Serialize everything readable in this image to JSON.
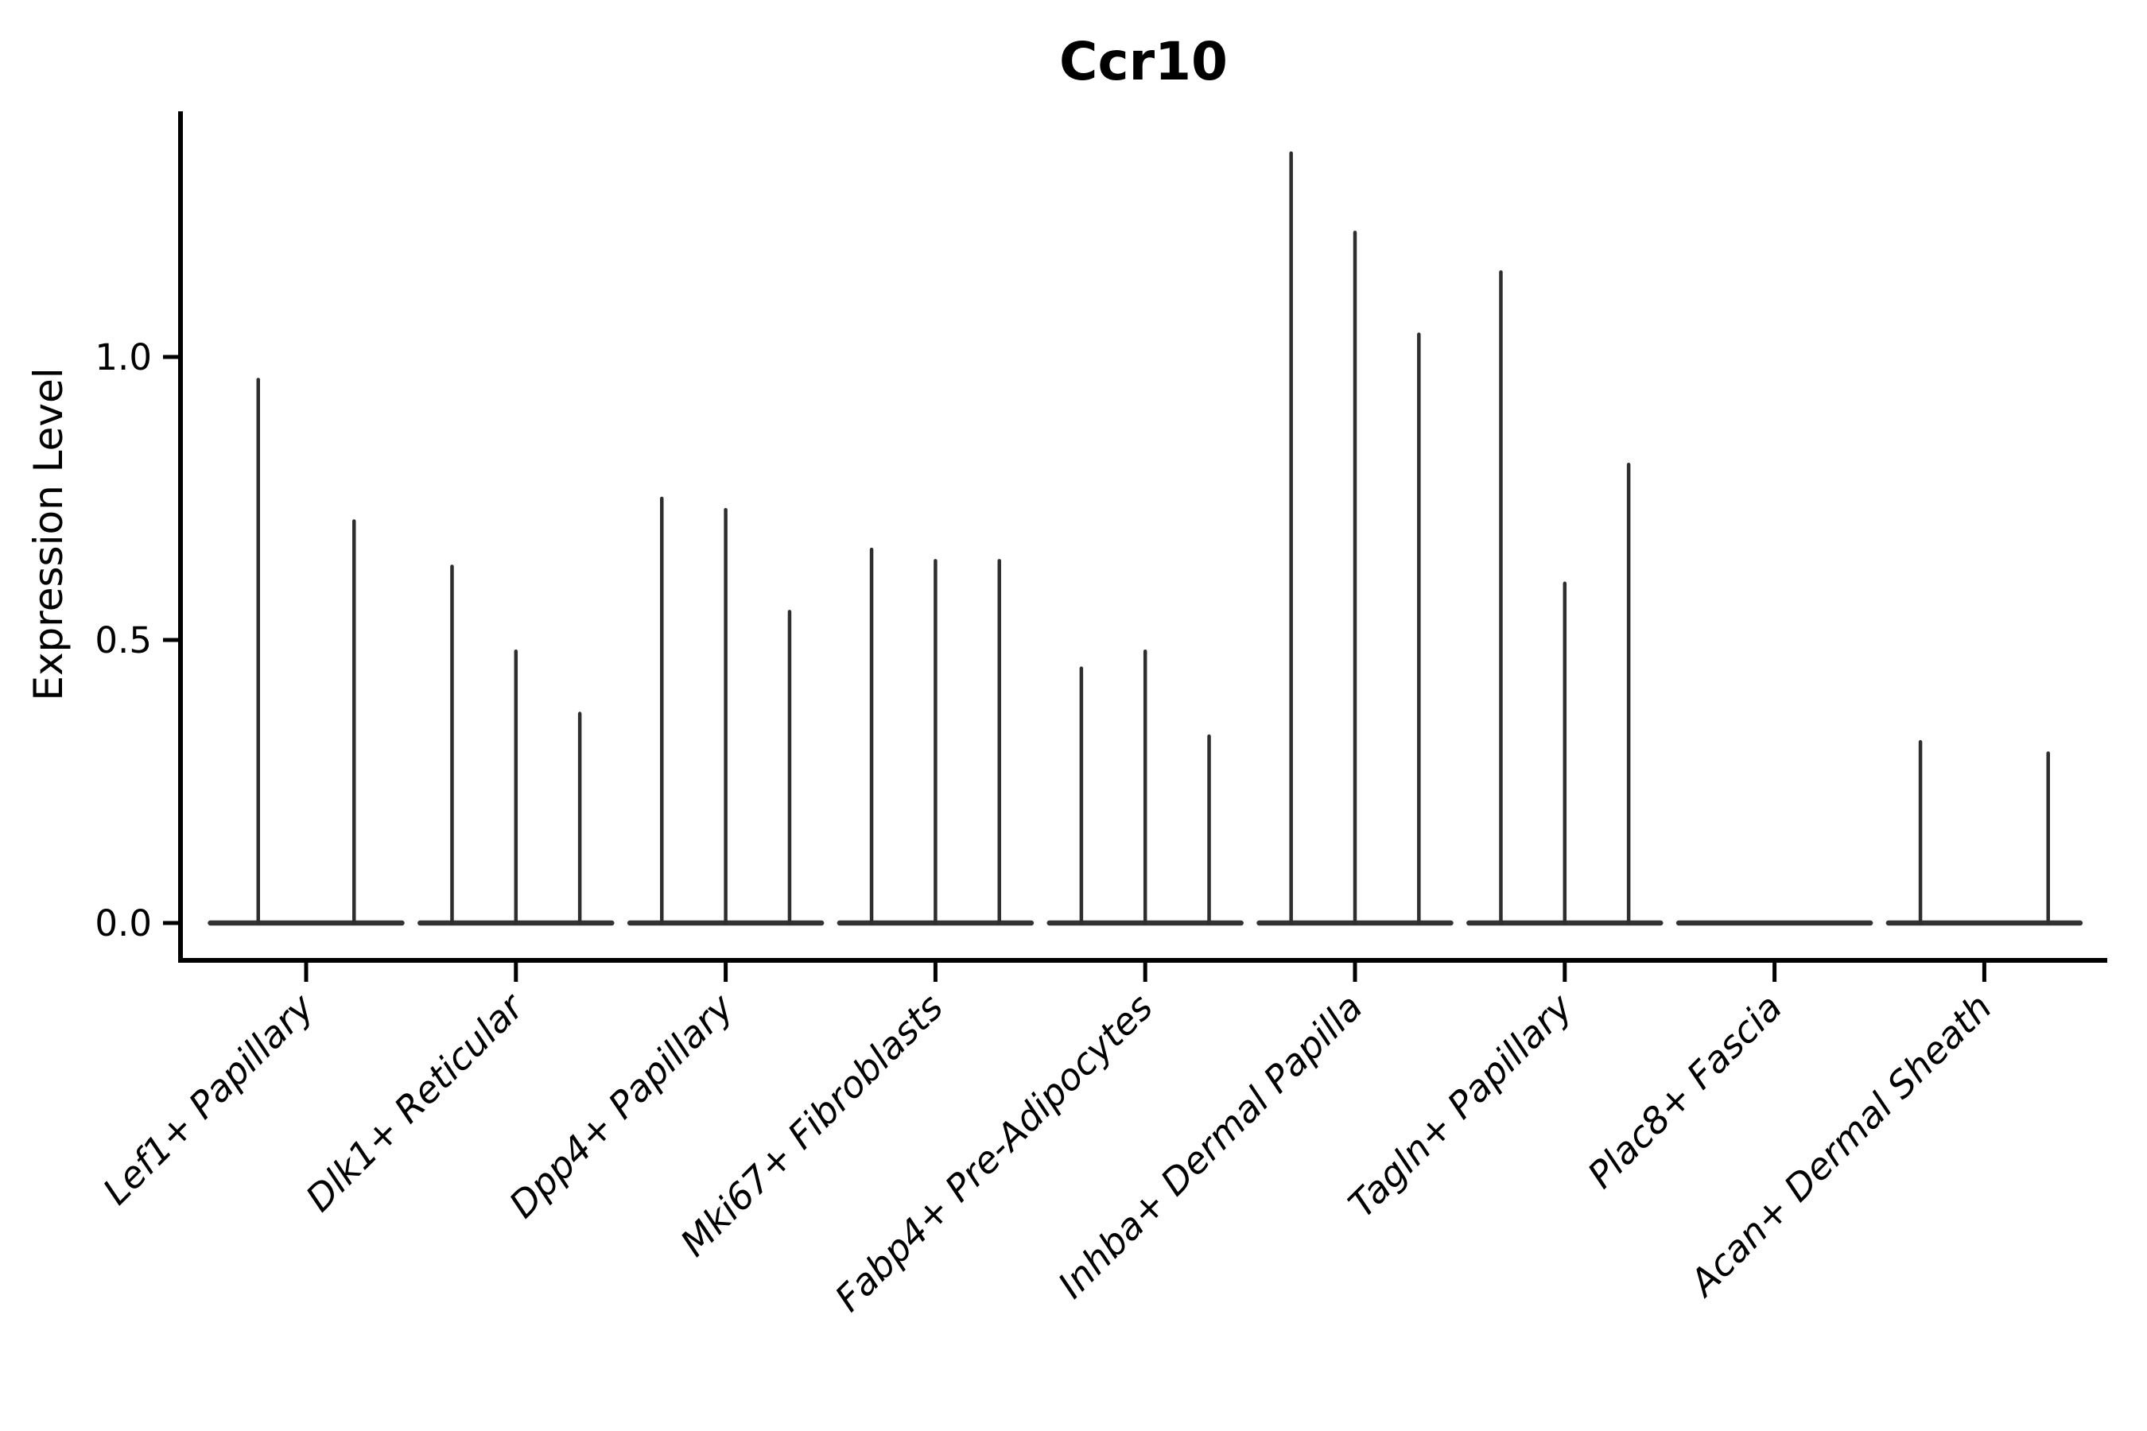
{
  "title": "Ccr10",
  "colors": {
    "background": "#ffffff",
    "axis": "#000000",
    "text": "#000000",
    "violin_outline": "#2e2e2e",
    "violin_baseline": "#333333"
  },
  "chart_data": {
    "type": "violin",
    "title": "Ccr10",
    "xlabel": "",
    "ylabel": "Expression Level",
    "ylim": [
      -0.07,
      1.43
    ],
    "grid": false,
    "legend": "none",
    "ytick_values": [
      0.0,
      0.5,
      1.0
    ],
    "ytick_labels": [
      "0.0",
      "0.5",
      "1.0"
    ],
    "xtick_rotation_deg": 45,
    "description": "Violin plot of Ccr10 expression per fibroblast cluster; each cluster holds 2-3 thin violins that are flat at 0 with a narrow spike up to the max expression value.",
    "categories": [
      "Lef1+ Papillary",
      "Dlk1+ Reticular",
      "Dpp4+ Papillary",
      "Mki67+ Fibroblasts",
      "Fabp4+ Pre-Adipocytes",
      "Inhba+ Dermal Papilla",
      "Tagln+ Papillary",
      "Plac8+ Fascia",
      "Acan+ Dermal Sheath"
    ],
    "groups": [
      {
        "label": "Lef1+ Papillary",
        "violin_max_values": [
          0.96,
          0.71
        ]
      },
      {
        "label": "Dlk1+ Reticular",
        "violin_max_values": [
          0.63,
          0.48,
          0.37
        ]
      },
      {
        "label": "Dpp4+ Papillary",
        "violin_max_values": [
          0.75,
          0.73,
          0.55
        ]
      },
      {
        "label": "Mki67+ Fibroblasts",
        "violin_max_values": [
          0.66,
          0.64,
          0.64
        ]
      },
      {
        "label": "Fabp4+ Pre-Adipocytes",
        "violin_max_values": [
          0.45,
          0.48,
          0.33
        ]
      },
      {
        "label": "Inhba+ Dermal Papilla",
        "violin_max_values": [
          1.36,
          1.22,
          1.04
        ]
      },
      {
        "label": "Tagln+ Papillary",
        "violin_max_values": [
          1.15,
          0.6,
          0.81
        ]
      },
      {
        "label": "Plac8+ Fascia",
        "violin_max_values": [
          0.0,
          0.0,
          0.0
        ]
      },
      {
        "label": "Acan+ Dermal Sheath",
        "violin_max_values": [
          0.32,
          0.0,
          0.3
        ]
      }
    ]
  }
}
